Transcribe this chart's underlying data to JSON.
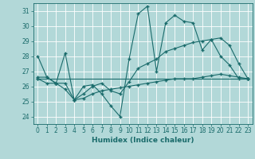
{
  "title": "",
  "xlabel": "Humidex (Indice chaleur)",
  "ylabel": "",
  "background_color": "#b2d8d8",
  "grid_color": "#ffffff",
  "line_color": "#1a6b6b",
  "xlim": [
    -0.5,
    23.5
  ],
  "ylim": [
    23.5,
    31.5
  ],
  "yticks": [
    24,
    25,
    26,
    27,
    28,
    29,
    30,
    31
  ],
  "xticks": [
    0,
    1,
    2,
    3,
    4,
    5,
    6,
    7,
    8,
    9,
    10,
    11,
    12,
    13,
    14,
    15,
    16,
    17,
    18,
    19,
    20,
    21,
    22,
    23
  ],
  "lines": [
    {
      "x": [
        0,
        1,
        2,
        3,
        4,
        5,
        6,
        7,
        8,
        9,
        10,
        11,
        12,
        13,
        14,
        15,
        16,
        17,
        18,
        19,
        20,
        21,
        22,
        23
      ],
      "y": [
        28.0,
        26.6,
        26.2,
        28.2,
        25.1,
        26.0,
        26.1,
        25.5,
        24.7,
        24.0,
        27.8,
        30.8,
        31.3,
        27.0,
        30.2,
        30.7,
        30.3,
        30.2,
        28.4,
        29.1,
        28.0,
        27.4,
        26.5,
        26.5
      ]
    },
    {
      "x": [
        0,
        1,
        2,
        3,
        4,
        5,
        6,
        7,
        8,
        9,
        10,
        11,
        12,
        13,
        14,
        15,
        16,
        17,
        18,
        19,
        20,
        21,
        22,
        23
      ],
      "y": [
        26.6,
        26.6,
        26.2,
        26.2,
        25.1,
        25.5,
        26.0,
        26.2,
        25.7,
        25.5,
        26.3,
        27.2,
        27.5,
        27.8,
        28.3,
        28.5,
        28.7,
        28.9,
        29.0,
        29.1,
        29.2,
        28.7,
        27.5,
        26.5
      ]
    },
    {
      "x": [
        0,
        23
      ],
      "y": [
        26.5,
        26.5
      ]
    },
    {
      "x": [
        0,
        1,
        2,
        3,
        4,
        5,
        6,
        7,
        8,
        9,
        10,
        11,
        12,
        13,
        14,
        15,
        16,
        17,
        18,
        19,
        20,
        21,
        22,
        23
      ],
      "y": [
        26.5,
        26.2,
        26.2,
        25.8,
        25.1,
        25.2,
        25.5,
        25.7,
        25.8,
        25.9,
        26.0,
        26.1,
        26.2,
        26.3,
        26.4,
        26.5,
        26.5,
        26.5,
        26.6,
        26.7,
        26.8,
        26.7,
        26.6,
        26.5
      ]
    }
  ],
  "marker": "+",
  "marker_size": 3,
  "line_width": 0.8,
  "font_size_ticks": 5.5,
  "font_size_xlabel": 6.5
}
